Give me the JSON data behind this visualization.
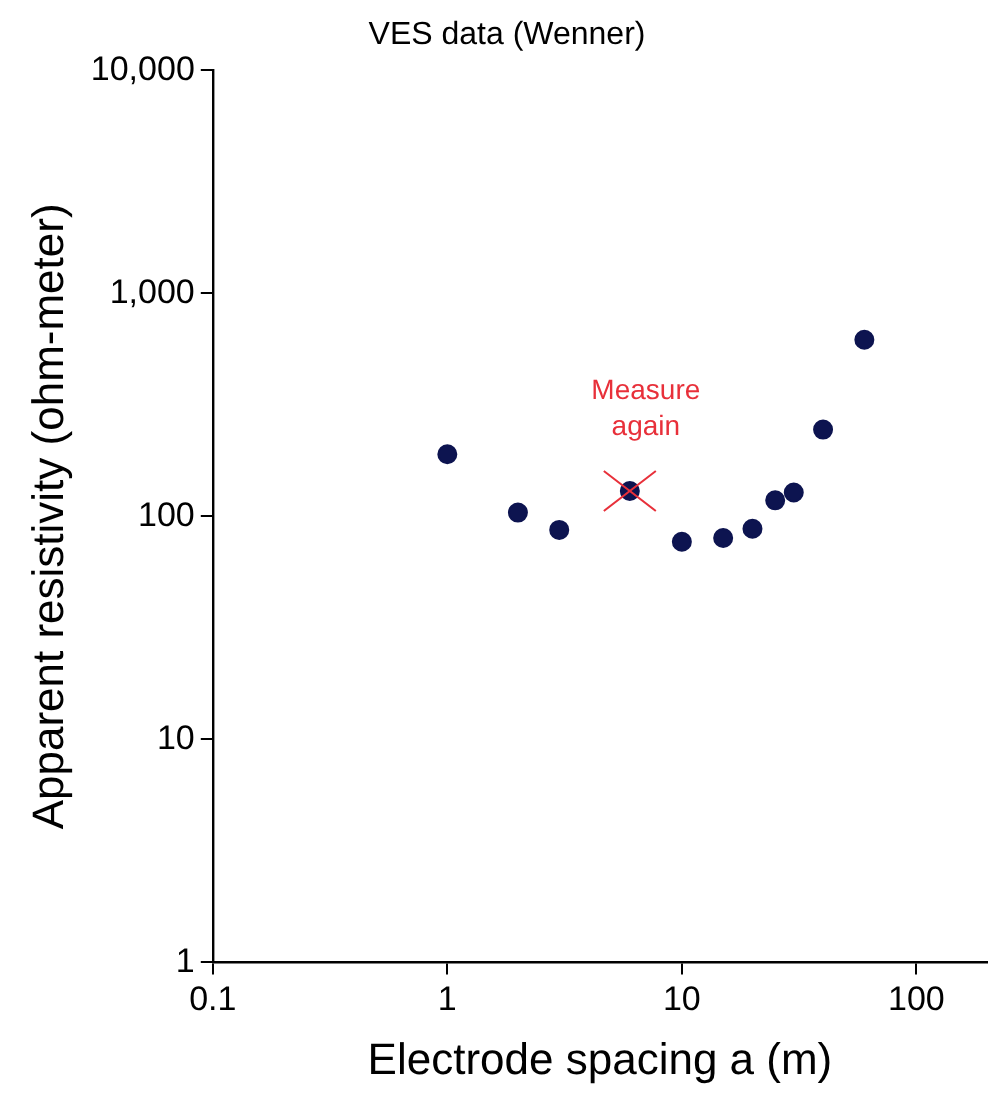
{
  "chart_data": {
    "type": "scatter",
    "title": "VES data (Wenner)",
    "xlabel": "Electrode spacing a (m)",
    "ylabel": "Apparent resistivity (ohm-meter)",
    "log": "xy",
    "xlim": [
      0.1,
      200
    ],
    "ylim": [
      1,
      10000
    ],
    "xticks": [
      0.1,
      1,
      10,
      100
    ],
    "yticks": [
      1,
      10,
      100,
      {
        "value": 1000,
        "label": "1,000"
      },
      {
        "value": 10000,
        "label": "10,000"
      }
    ],
    "grid": false,
    "legend": false,
    "marker": "circle",
    "series": [
      {
        "color": "#0d1450",
        "x": [
          1,
          2,
          3,
          6,
          10,
          15,
          20,
          25,
          30,
          40,
          60
        ],
        "values": [
          190,
          104,
          87,
          130,
          77,
          80,
          88,
          118,
          128,
          245,
          620
        ]
      }
    ],
    "annotations": [
      {
        "text": "Measure again",
        "x": 6,
        "y": 130
      }
    ]
  }
}
